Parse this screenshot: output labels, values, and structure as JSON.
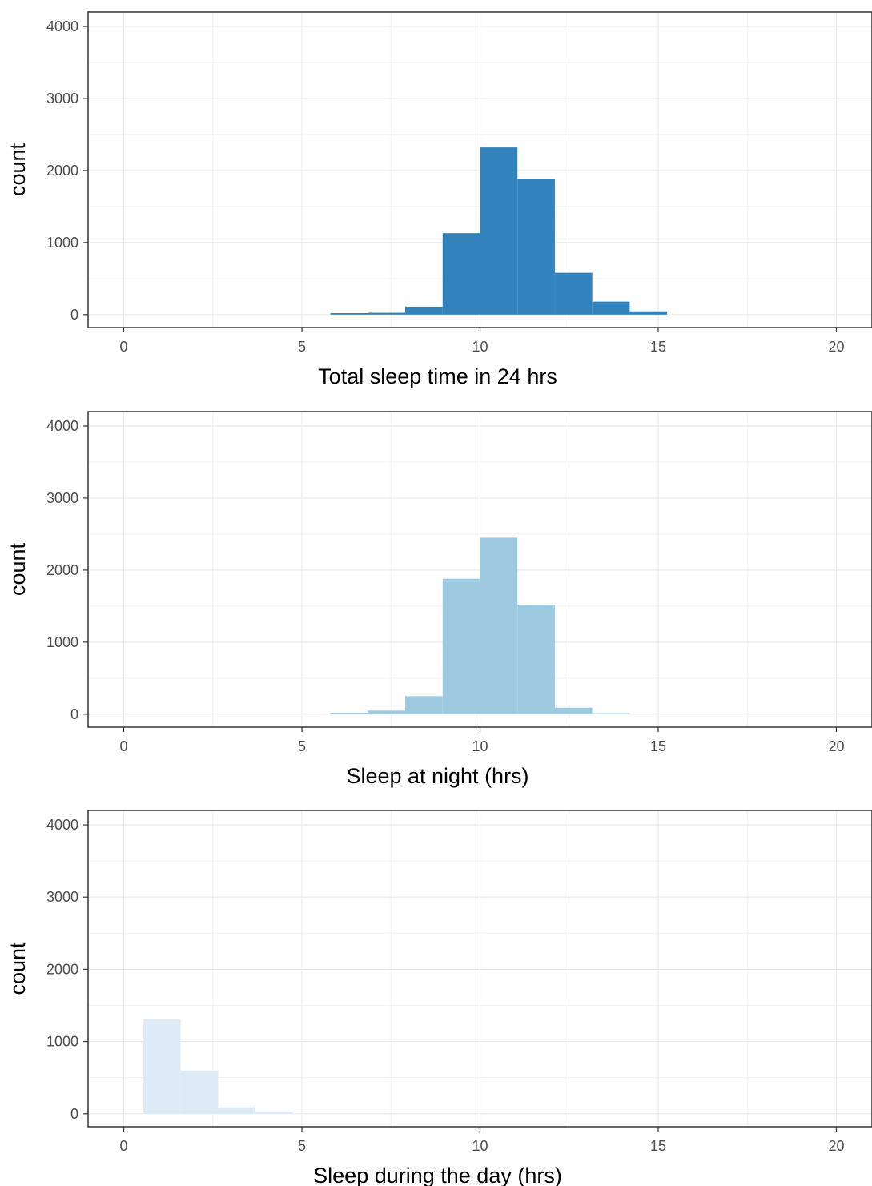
{
  "chart_data": [
    {
      "type": "bar",
      "xlabel": "Total sleep time in 24 hrs",
      "ylabel": "count",
      "xlim": [
        -1,
        21
      ],
      "ylim": [
        -180,
        4200
      ],
      "x_ticks": [
        0,
        5,
        10,
        15,
        20
      ],
      "x_tick_labels": [
        "0",
        "5",
        "10",
        "15",
        "20"
      ],
      "y_ticks": [
        0,
        1000,
        2000,
        3000,
        4000
      ],
      "y_tick_labels": [
        "0",
        "1000",
        "2000",
        "3000",
        "4000"
      ],
      "bin_width": 1.05,
      "bin_starts": [
        5.8,
        6.85,
        7.9,
        8.95,
        10.0,
        11.05,
        12.1,
        13.15,
        14.2
      ],
      "values": [
        20,
        25,
        110,
        1130,
        2320,
        1880,
        580,
        180,
        45
      ],
      "color": "#3182bd",
      "grid": true,
      "legend": "none"
    },
    {
      "type": "bar",
      "xlabel": "Sleep at night (hrs)",
      "ylabel": "count",
      "xlim": [
        -1,
        21
      ],
      "ylim": [
        -180,
        4200
      ],
      "x_ticks": [
        0,
        5,
        10,
        15,
        20
      ],
      "x_tick_labels": [
        "0",
        "5",
        "10",
        "15",
        "20"
      ],
      "y_ticks": [
        0,
        1000,
        2000,
        3000,
        4000
      ],
      "y_tick_labels": [
        "0",
        "1000",
        "2000",
        "3000",
        "4000"
      ],
      "bin_width": 1.05,
      "bin_starts": [
        5.8,
        6.85,
        7.9,
        8.95,
        10.0,
        11.05,
        12.1,
        13.15
      ],
      "values": [
        20,
        50,
        250,
        1880,
        2450,
        1520,
        90,
        15
      ],
      "color": "#9ecae1",
      "grid": true,
      "legend": "none"
    },
    {
      "type": "bar",
      "xlabel": "Sleep during the day (hrs)",
      "ylabel": "count",
      "xlim": [
        -1,
        21
      ],
      "ylim": [
        -180,
        4200
      ],
      "x_ticks": [
        0,
        5,
        10,
        15,
        20
      ],
      "x_tick_labels": [
        "0",
        "5",
        "10",
        "15",
        "20"
      ],
      "y_ticks": [
        0,
        1000,
        2000,
        3000,
        4000
      ],
      "y_tick_labels": [
        "0",
        "1000",
        "2000",
        "3000",
        "4000"
      ],
      "bin_width": 1.05,
      "bin_starts": [
        0.55,
        1.6,
        2.65,
        3.7
      ],
      "values": [
        1310,
        600,
        90,
        25
      ],
      "color": "#deebf7",
      "grid": true,
      "legend": "none"
    }
  ]
}
